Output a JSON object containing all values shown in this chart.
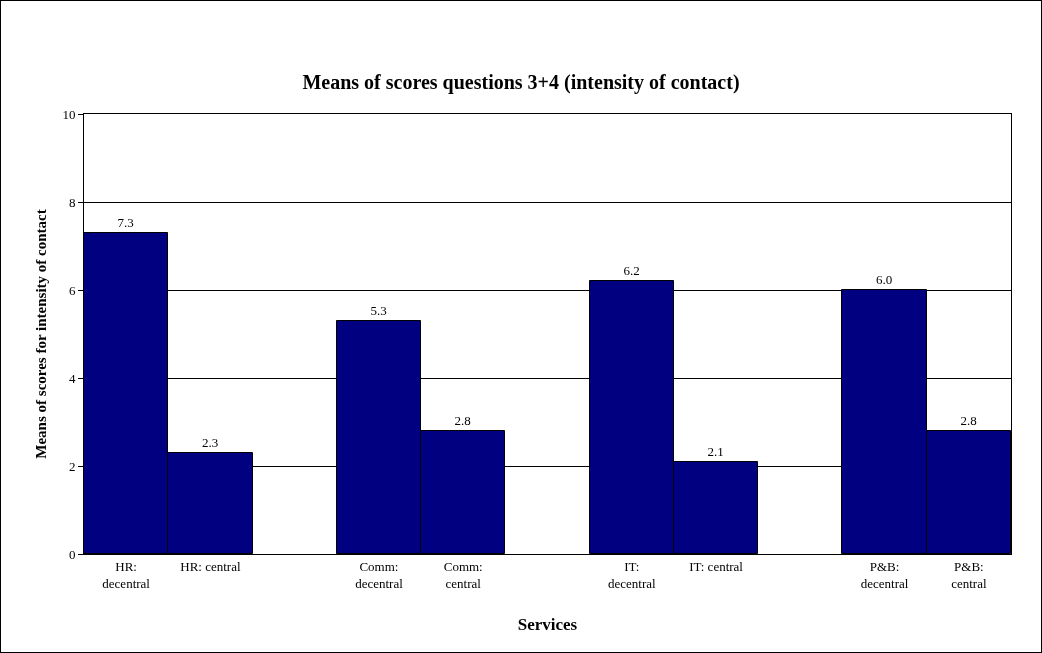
{
  "chart_data": {
    "type": "bar",
    "title": "Means of scores questions 3+4 (intensity of contact)",
    "xlabel": "Services",
    "ylabel": "Means of scores for intensity of contact",
    "categories": [
      "HR: decentral",
      "HR: central",
      null,
      "Comm: decentral",
      "Comm: central",
      null,
      "IT: decentral",
      "IT: central",
      null,
      "P&B: decentral",
      "P&B: central"
    ],
    "values": [
      7.3,
      2.3,
      null,
      5.3,
      2.8,
      null,
      6.2,
      2.1,
      null,
      6.0,
      2.8
    ],
    "value_labels": [
      "7.3",
      "2.3",
      null,
      "5.3",
      "2.8",
      null,
      "6.2",
      "2.1",
      null,
      "6.0",
      "2.8"
    ],
    "color": "#000080",
    "ylim": [
      0,
      10
    ],
    "yticks": [
      0,
      2,
      4,
      6,
      8,
      10
    ],
    "grid": "y"
  }
}
